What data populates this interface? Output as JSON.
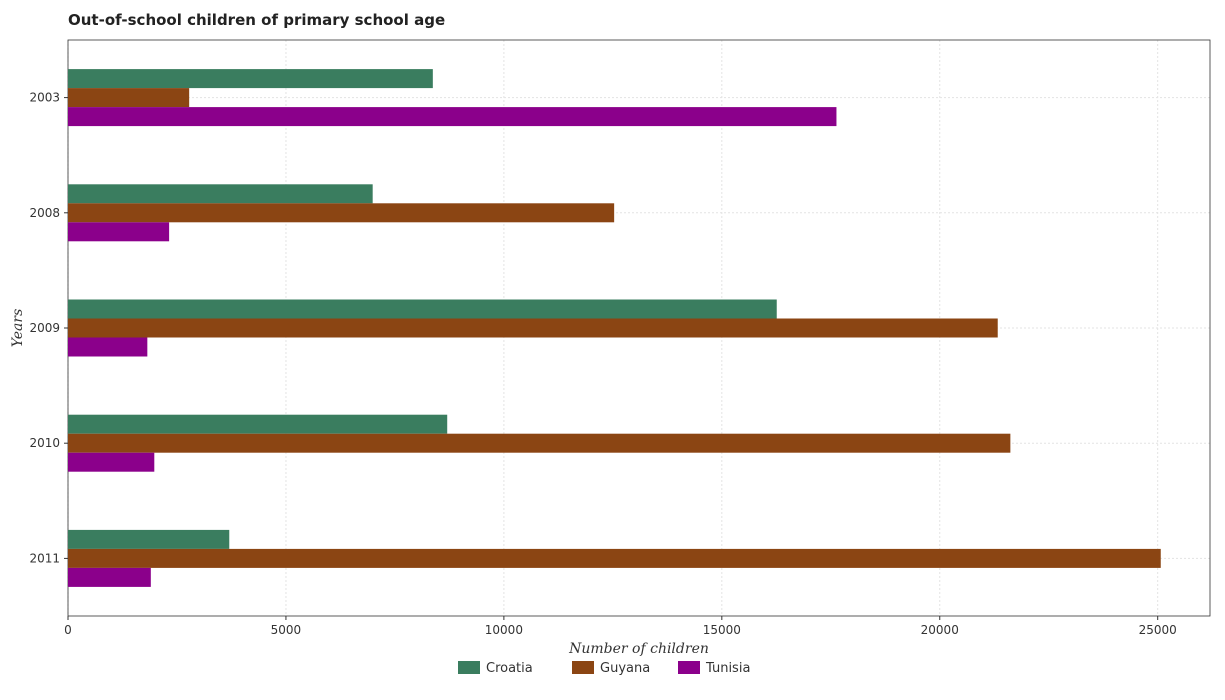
{
  "chart_data": {
    "type": "bar",
    "orientation": "horizontal",
    "title": "Out-of-school children of primary school age",
    "xlabel": "Number of children",
    "ylabel": "Years",
    "categories": [
      "2003",
      "2008",
      "2009",
      "2010",
      "2011"
    ],
    "series": [
      {
        "name": "Croatia",
        "color": "#3a7d5f",
        "values": [
          8370,
          6990,
          16260,
          8700,
          3700
        ]
      },
      {
        "name": "Guyana",
        "color": "#8b4513",
        "values": [
          2780,
          12530,
          21330,
          21620,
          25070
        ]
      },
      {
        "name": "Tunisia",
        "color": "#8b008b",
        "values": [
          17630,
          2320,
          1820,
          1980,
          1900
        ]
      }
    ],
    "xlim": [
      0,
      26200
    ],
    "xticks": [
      0,
      5000,
      10000,
      15000,
      20000,
      25000
    ],
    "grid": true,
    "legend": "bottom"
  }
}
